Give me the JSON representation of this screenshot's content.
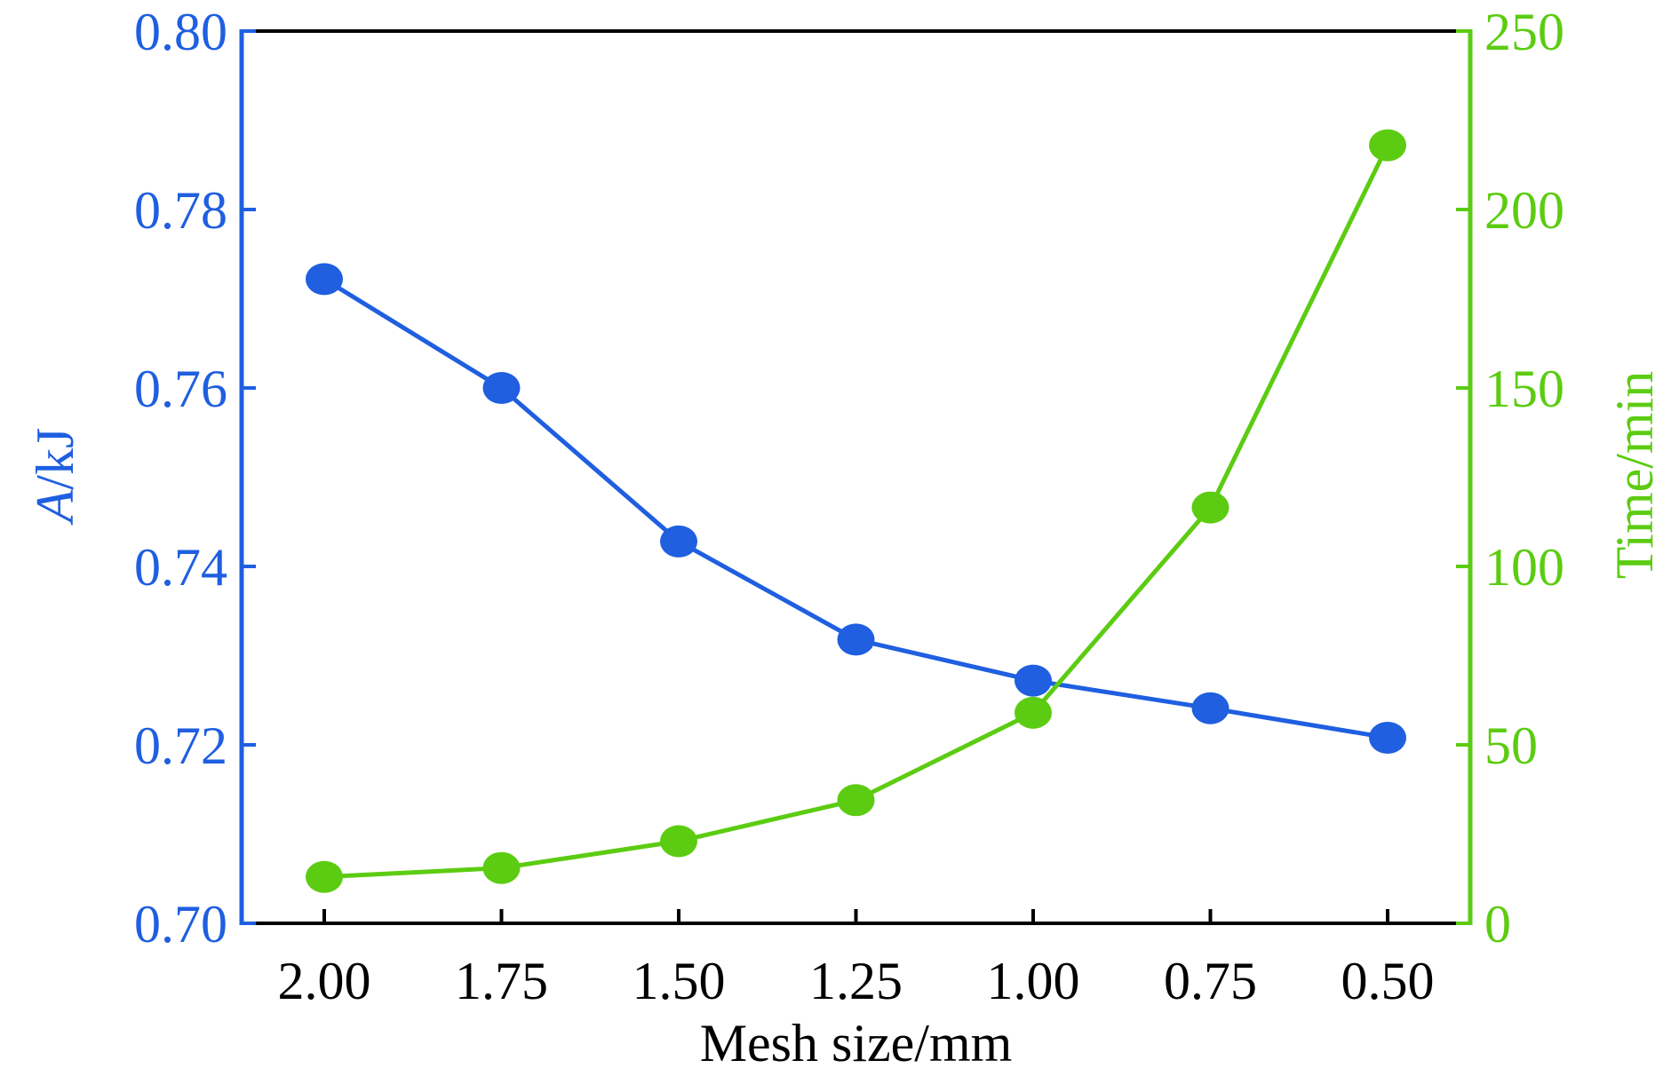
{
  "chart_data": {
    "type": "line",
    "xlabel": "Mesh size/mm",
    "ylabel_left": {
      "italic": "A",
      "rest": "/kJ"
    },
    "ylabel_right": "Time/min",
    "x": [
      "2.00",
      "1.75",
      "1.50",
      "1.25",
      "1.00",
      "0.75",
      "0.50"
    ],
    "left_ticks": [
      "0.70",
      "0.72",
      "0.74",
      "0.76",
      "0.78",
      "0.80"
    ],
    "right_ticks": [
      "0",
      "50",
      "100",
      "150",
      "200",
      "250"
    ],
    "ylim_left": [
      0.7,
      0.8
    ],
    "ylim_right": [
      0,
      250
    ],
    "series": [
      {
        "axis": "left",
        "color": "#1f5fe0",
        "values": [
          0.7722,
          0.76,
          0.7428,
          0.7318,
          0.7272,
          0.7241,
          0.7208
        ]
      },
      {
        "axis": "right",
        "color": "#5ccc12",
        "values": [
          13,
          15.5,
          23,
          34.5,
          59,
          116.5,
          218
        ]
      }
    ],
    "grid": false,
    "legend": "none"
  },
  "colors": {
    "left_axis": "#1f5fe0",
    "right_axis": "#5ccc12",
    "frame": "#000000"
  }
}
